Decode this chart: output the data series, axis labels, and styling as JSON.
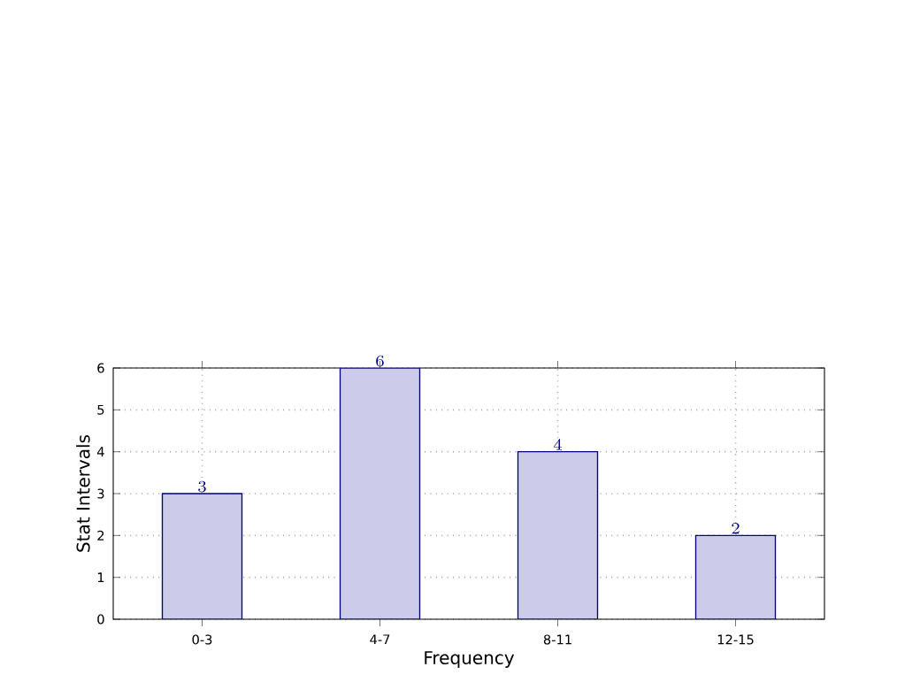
{
  "chart_data": {
    "type": "bar",
    "xlabel": "Frequency",
    "ylabel": "Stat Intervals",
    "categories": [
      "0-3",
      "4-7",
      "8-11",
      "12-15"
    ],
    "values": [
      3,
      6,
      4,
      2
    ],
    "color": "#ccccea",
    "ylim": [
      0,
      6
    ],
    "yticks": [
      0,
      1,
      2,
      3,
      4,
      5,
      6
    ],
    "grid": true,
    "data_labels": true
  }
}
